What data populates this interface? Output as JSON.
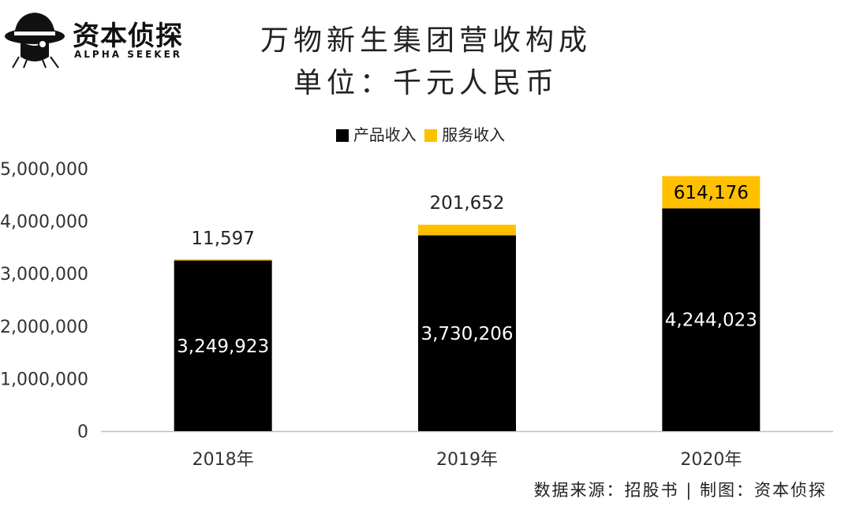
{
  "logo": {
    "name_cn": "资本侦探",
    "name_en": "ALPHA SEEKER",
    "icon": "detective-hat-icon"
  },
  "colors": {
    "product": "#000000",
    "service": "#FFC000",
    "axis": "#bfbfbf"
  },
  "source_text": "数据来源：招股书 | 制图：资本侦探",
  "chart_data": {
    "type": "bar",
    "stacked": true,
    "title": "万物新生集团营收构成",
    "subtitle": "单位：千元人民币",
    "xlabel": "",
    "ylabel": "",
    "ylim": [
      0,
      5000000
    ],
    "ytick_labels": [
      "0",
      "1,000,000",
      "2,000,000",
      "3,000,000",
      "4,000,000",
      "5,000,000"
    ],
    "legend_position": "top-center",
    "grid": false,
    "categories": [
      "2018年",
      "2019年",
      "2020年"
    ],
    "series": [
      {
        "name": "产品收入",
        "color": "#000000",
        "values": [
          3249923,
          3730206,
          4244023
        ],
        "labels": [
          "3,249,923",
          "3,730,206",
          "4,244,023"
        ]
      },
      {
        "name": "服务收入",
        "color": "#FFC000",
        "values": [
          11597,
          201652,
          614176
        ],
        "labels": [
          "11,597",
          "201,652",
          "614,176"
        ]
      }
    ]
  }
}
